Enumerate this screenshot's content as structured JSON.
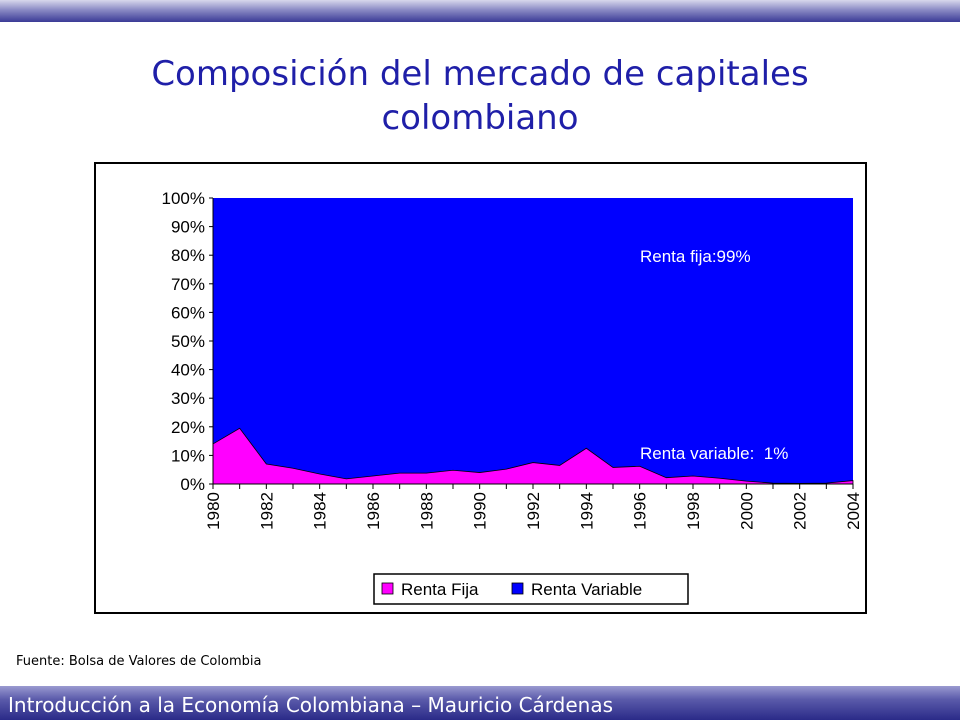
{
  "slide": {
    "title": "Composición del mercado de capitales colombiano",
    "source": "Fuente: Bolsa de Valores de Colombia",
    "footer": "Introducción a la Economía Colombiana – Mauricio Cárdenas"
  },
  "colors": {
    "renta_fija": "#ff00ff",
    "renta_variable": "#0000ff",
    "title": "#1f1fa8"
  },
  "chart_data": {
    "type": "area",
    "stacked": "percent",
    "x": [
      1980,
      1981,
      1982,
      1983,
      1984,
      1985,
      1986,
      1987,
      1988,
      1989,
      1990,
      1991,
      1992,
      1993,
      1994,
      1995,
      1996,
      1997,
      1998,
      1999,
      2000,
      2001,
      2002,
      2003,
      2004
    ],
    "x_tick_labels": [
      "1980",
      "1982",
      "1984",
      "1986",
      "1988",
      "1990",
      "1992",
      "1994",
      "1996",
      "1998",
      "2000",
      "2002",
      "2004"
    ],
    "y_tick_labels": [
      "0%",
      "10%",
      "20%",
      "30%",
      "40%",
      "50%",
      "60%",
      "70%",
      "80%",
      "90%",
      "100%"
    ],
    "ylim": [
      0,
      100
    ],
    "series": [
      {
        "name": "Renta Fija",
        "values": [
          14,
          19.5,
          7,
          5.5,
          3.5,
          1.8,
          2.8,
          3.8,
          3.8,
          4.8,
          4,
          5.2,
          7.5,
          6.5,
          12.5,
          5.8,
          6.2,
          2.2,
          2.8,
          2,
          1,
          0.3,
          0.2,
          0.3,
          1.2
        ]
      },
      {
        "name": "Renta Variable",
        "values": [
          86,
          80.5,
          93,
          94.5,
          96.5,
          98.2,
          97.2,
          96.2,
          96.2,
          95.2,
          96,
          94.8,
          92.5,
          93.5,
          87.5,
          94.2,
          93.8,
          97.8,
          97.2,
          98,
          99,
          99.7,
          99.8,
          99.7,
          98.8
        ]
      }
    ],
    "annotations": [
      "Renta fija:99%",
      "Renta variable:  1%"
    ],
    "legend": {
      "position": "bottom",
      "entries": [
        "Renta Fija",
        "Renta Variable"
      ]
    }
  }
}
